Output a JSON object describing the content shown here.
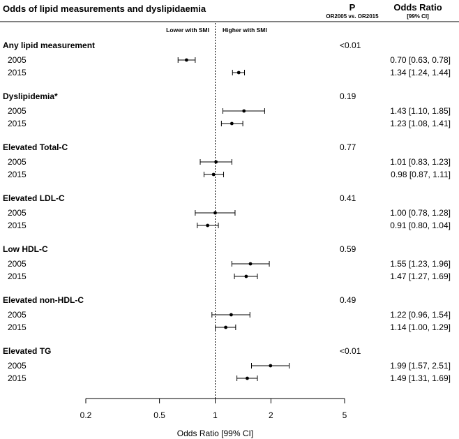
{
  "header": {
    "title": "Odds of lipid measurements and dyslipidaemia",
    "p_label": "P",
    "p_sublabel": "OR2005 vs. OR2015",
    "or_label": "Odds Ratio",
    "or_sublabel": "[99% CI]"
  },
  "direction_labels": {
    "left": "Lower with SMI",
    "right": "Higher with SMI"
  },
  "chart_data": {
    "type": "forest",
    "x_scale": "log",
    "xlim": [
      0.2,
      5
    ],
    "x_ticks": [
      0.2,
      0.5,
      1,
      2,
      5
    ],
    "x_tick_labels": [
      "0.2",
      "0.5",
      "1",
      "2",
      "5"
    ],
    "xlabel": "Odds Ratio [99% CI]",
    "reference_line": 1,
    "groups": [
      {
        "name": "Any lipid measurement",
        "p": "<0.01",
        "rows": [
          {
            "label": "2005",
            "or": 0.7,
            "lo": 0.63,
            "hi": 0.78,
            "text": "0.70 [0.63, 0.78]"
          },
          {
            "label": "2015",
            "or": 1.34,
            "lo": 1.24,
            "hi": 1.44,
            "text": "1.34 [1.24, 1.44]"
          }
        ]
      },
      {
        "name": "Dyslipidemia*",
        "p": "0.19",
        "rows": [
          {
            "label": "2005",
            "or": 1.43,
            "lo": 1.1,
            "hi": 1.85,
            "text": "1.43 [1.10, 1.85]"
          },
          {
            "label": "2015",
            "or": 1.23,
            "lo": 1.08,
            "hi": 1.41,
            "text": "1.23 [1.08, 1.41]"
          }
        ]
      },
      {
        "name": "Elevated Total-C",
        "p": "0.77",
        "rows": [
          {
            "label": "2005",
            "or": 1.01,
            "lo": 0.83,
            "hi": 1.23,
            "text": "1.01 [0.83, 1.23]"
          },
          {
            "label": "2015",
            "or": 0.98,
            "lo": 0.87,
            "hi": 1.11,
            "text": "0.98 [0.87, 1.11]"
          }
        ]
      },
      {
        "name": "Elevated LDL-C",
        "p": "0.41",
        "rows": [
          {
            "label": "2005",
            "or": 1.0,
            "lo": 0.78,
            "hi": 1.28,
            "text": "1.00 [0.78, 1.28]"
          },
          {
            "label": "2015",
            "or": 0.91,
            "lo": 0.8,
            "hi": 1.04,
            "text": "0.91 [0.80, 1.04]"
          }
        ]
      },
      {
        "name": "Low HDL-C",
        "p": "0.59",
        "rows": [
          {
            "label": "2005",
            "or": 1.55,
            "lo": 1.23,
            "hi": 1.96,
            "text": "1.55 [1.23, 1.96]"
          },
          {
            "label": "2015",
            "or": 1.47,
            "lo": 1.27,
            "hi": 1.69,
            "text": "1.47 [1.27, 1.69]"
          }
        ]
      },
      {
        "name": "Elevated non-HDL-C",
        "p": "0.49",
        "rows": [
          {
            "label": "2005",
            "or": 1.22,
            "lo": 0.96,
            "hi": 1.54,
            "text": "1.22 [0.96, 1.54]"
          },
          {
            "label": "2015",
            "or": 1.14,
            "lo": 1.0,
            "hi": 1.29,
            "text": "1.14 [1.00, 1.29]"
          }
        ]
      },
      {
        "name": "Elevated TG",
        "p": "<0.01",
        "rows": [
          {
            "label": "2005",
            "or": 1.99,
            "lo": 1.57,
            "hi": 2.51,
            "text": "1.99 [1.57, 2.51]"
          },
          {
            "label": "2015",
            "or": 1.49,
            "lo": 1.31,
            "hi": 1.69,
            "text": "1.49 [1.31, 1.69]"
          }
        ]
      }
    ]
  }
}
